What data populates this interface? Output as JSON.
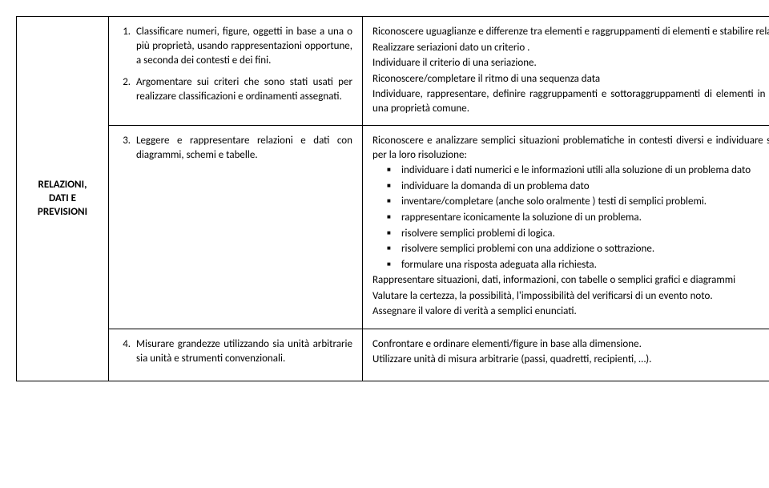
{
  "row1": {
    "left": {
      "items": [
        "Classificare numeri, figure, oggetti in base a una o più proprietà, usando rappresentazioni opportune, a seconda dei contesti e dei fini.",
        "Argomentare sui criteri che sono stati usati per realizzare classificazioni e ordinamenti assegnati."
      ]
    },
    "right": {
      "p1": "Riconoscere uguaglianze e differenze tra elementi e raggruppamenti di elementi e stabilire relazioni .",
      "p2": "Realizzare seriazioni dato un criterio .",
      "p3": "Individuare il criterio di una seriazione.",
      "p4": "Riconoscere/completare il ritmo di una sequenza data",
      "p5": "Individuare, rappresentare, definire raggruppamenti e sottoraggruppamenti di elementi in base ad una proprietà comune."
    }
  },
  "row2": {
    "label_l1": "RELAZIONI,",
    "label_l2": "DATI E",
    "label_l3": "PREVISIONI",
    "left_item": "Leggere e rappresentare relazioni e dati con diagrammi, schemi e tabelle.",
    "right": {
      "intro": "Riconoscere e analizzare semplici situazioni problematiche in contesti diversi e individuare strategie per la loro risoluzione:",
      "bullets": [
        "individuare i dati numerici e le informazioni utili alla soluzione di un problema dato",
        "individuare la domanda di un problema dato",
        " inventare/completare (anche solo oralmente ) testi di  semplici  problemi.",
        "rappresentare  iconicamente la soluzione di un problema.",
        "risolvere semplici problemi di logica.",
        "risolvere semplici problemi con una addizione o sottrazione.",
        "formulare una risposta adeguata alla richiesta."
      ],
      "p1": "Rappresentare situazioni, dati,  informazioni, con tabelle o semplici grafici e diagrammi",
      "p2": "Valutare la certezza, la possibilità, l'impossibilità del verificarsi di un evento noto.",
      "p3": "Assegnare il valore di verità a semplici enunciati."
    }
  },
  "row3": {
    "left_item": "Misurare grandezze utilizzando sia unità arbitrarie sia unità e strumenti convenzionali.",
    "right": {
      "p1": "Confrontare e ordinare elementi/figure in base alla dimensione.",
      "p2": "Utilizzare unità di misura arbitrarie (passi, quadretti, recipienti, …)."
    }
  }
}
